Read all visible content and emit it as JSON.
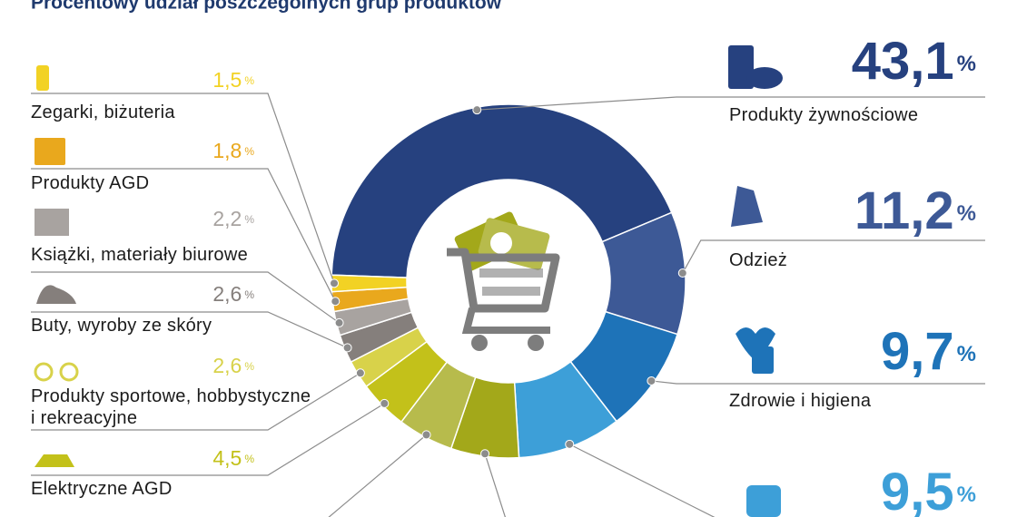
{
  "chart_data": {
    "type": "pie",
    "donut": true,
    "title": "Procentowy udział poszczególnych grup produktów",
    "categories": [
      "Produkty żywnościowe",
      "Odzież",
      "Zdrowie i higiena",
      null,
      null,
      null,
      "Elektryczne AGD",
      "Produkty sportowe, hobbystyczne\ni rekreacyjne",
      "Buty, wyroby ze skóry",
      "Książki, materiały biurowe",
      "Produkty AGD",
      "Zegarki, biżuteria"
    ],
    "values": [
      43.1,
      11.2,
      9.7,
      9.5,
      6.2,
      5.1,
      4.5,
      2.6,
      2.6,
      2.2,
      1.8,
      1.5
    ],
    "value_labels": [
      "43,1%",
      "11,2%",
      "9,7%",
      "9,5%",
      null,
      null,
      "4,5%",
      "2,6%",
      "2,6%",
      "2,2%",
      "1,8%",
      "1,5%"
    ],
    "colors": [
      "#26417f",
      "#3d5996",
      "#1e73b8",
      "#3d9fd8",
      "#a3a81a",
      "#b7bb4c",
      "#c3c11a",
      "#d8d24a",
      "#857f7c",
      "#a8a3a0",
      "#e9a81d",
      "#f2d224"
    ]
  }
}
